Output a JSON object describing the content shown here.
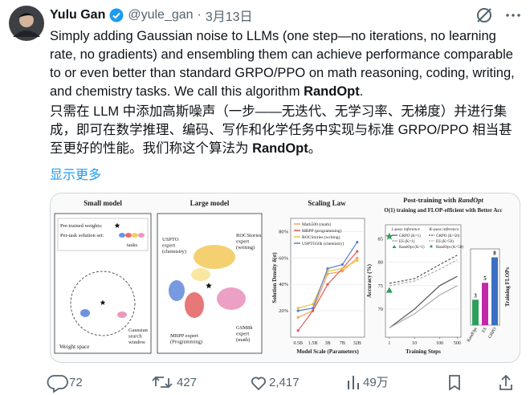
{
  "header": {
    "name": "Yulu Gan",
    "handle": "@yule_gan",
    "separator": "·",
    "date": "3月13日"
  },
  "post": {
    "text_en": "Simply adding Gaussian noise to LLMs (one step—no iterations, no learning rate, no gradients) and ensembling them can achieve performance comparable to or even better than standard GRPO/PPO on math reasoning, coding, writing, and chemistry tasks. We call this algorithm ",
    "text_en_bold": "RandOpt",
    "text_en_end": ".",
    "text_zh": "只需在 LLM 中添加高斯噪声（一步——无迭代、无学习率、无梯度）并进行集成，即可在数学推理、编码、写作和化学任务中实现与标准 GRPO/PPO 相当甚至更好的性能。我们称这个算法为 ",
    "text_zh_bold": "RandOpt",
    "text_zh_end": "。",
    "show_more": "显示更多"
  },
  "figure": {
    "small_model": {
      "title": "Small model",
      "weights_label": "Pre-trained weights:",
      "solution_label": "Per-task solution set:",
      "tasks": "tasks",
      "search_window": [
        "Gaussian",
        "search",
        "window"
      ],
      "space": "Weight space"
    },
    "large_model": {
      "title": "Large model",
      "experts": [
        [
          "USPTO",
          "expert",
          "(chemistry)"
        ],
        [
          "ROCStories",
          "expert",
          "(writing)"
        ],
        [
          "MBPP expert",
          "(Programming)"
        ],
        [
          "GSM8k",
          "expert",
          "(math)"
        ]
      ]
    },
    "scaling": {
      "type": "line",
      "title": "Scaling Law",
      "x_label": "Model Scale (Parameters)",
      "y_label": "Solution Density δ(σ)",
      "categories": [
        "0.5B",
        "1.5B",
        "3B",
        "7B",
        "32B"
      ],
      "ylim": [
        0,
        90
      ],
      "yticks": [
        {
          "value": 20,
          "label": "20%"
        },
        {
          "value": 40,
          "label": "40%"
        },
        {
          "value": 60,
          "label": "60%"
        },
        {
          "value": 80,
          "label": "80%"
        }
      ],
      "grid": true,
      "series": [
        {
          "name": "Math500 (math)",
          "color": "#f4a259",
          "values": [
            15,
            20,
            48,
            50,
            60
          ]
        },
        {
          "name": "MBPP (programming)",
          "color": "#e05a5a",
          "values": [
            5,
            20,
            40,
            52,
            65
          ]
        },
        {
          "name": "ROCStories (writing)",
          "color": "#e8c540",
          "values": [
            22,
            25,
            50,
            52,
            58
          ]
        },
        {
          "name": "USPTO50k (chemistry)",
          "color": "#5b7fd1",
          "values": [
            20,
            22,
            52,
            55,
            72
          ]
        }
      ]
    },
    "post_training": {
      "type": "line",
      "title": "Post-training with ",
      "title_em": "RandOpt",
      "subtitle": "O(1) training and FLOP-efficient with Better Acc",
      "col_headers": [
        "1-pass inference",
        "K-pass inference"
      ],
      "x_label": "Training Steps",
      "y_label": "Accuracy (%)",
      "x": [
        1,
        10,
        100,
        500
      ],
      "xlim": [
        0.7,
        700
      ],
      "xticks": [
        1,
        10,
        100,
        500
      ],
      "log_x": true,
      "ylim": [
        64,
        88
      ],
      "yticks": [
        70,
        75,
        80,
        85
      ],
      "grid": true,
      "series": [
        {
          "name": "GRPO (K=1)",
          "color": "#555555",
          "dash": false,
          "values": [
            66,
            70,
            75,
            77
          ]
        },
        {
          "name": "ES (K=1)",
          "color": "#aaaaaa",
          "dash": false,
          "values": [
            66,
            69,
            73,
            75
          ]
        },
        {
          "name": "RandOpt (K=1)",
          "color": "#2e9e5b",
          "marker": "triangle",
          "values": [
            74,
            null,
            null,
            null
          ]
        },
        {
          "name": "GRPO (K=50)",
          "color": "#555555",
          "dash": true,
          "values": [
            75.5,
            76.5,
            79.5,
            81.5
          ]
        },
        {
          "name": "ES (K=50)",
          "color": "#aaaaaa",
          "dash": true,
          "values": [
            75,
            76,
            78.5,
            80.5
          ]
        },
        {
          "name": "RandOpt (K=50)",
          "color": "#2e9e5b",
          "marker": "star",
          "values": [
            85.5,
            null,
            null,
            null
          ]
        }
      ]
    },
    "flops": {
      "type": "bar",
      "y_label": "Training FLOPs",
      "categories": [
        "RandOpt",
        "ES",
        "GRPO"
      ],
      "values": [
        3,
        5,
        8
      ],
      "colors": [
        "#2e9e5b",
        "#c02aa8",
        "#3a6fc4"
      ],
      "ylim": [
        0,
        9
      ]
    }
  },
  "actions": {
    "replies": "72",
    "reposts": "427",
    "likes": "2,417",
    "views": "49万"
  }
}
